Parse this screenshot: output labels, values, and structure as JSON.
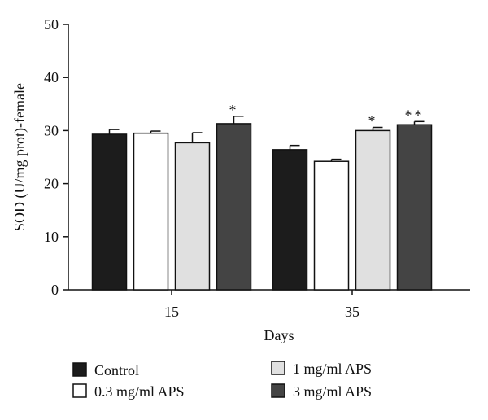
{
  "chart_data": {
    "type": "bar",
    "categories": [
      "15",
      "35"
    ],
    "xlabel": "Days",
    "ylabel": "SOD (U/mg prot)-female",
    "ylim": [
      0,
      50
    ],
    "yticks": [
      0,
      10,
      20,
      30,
      40,
      50
    ],
    "grid": false,
    "legend_position": "bottom",
    "series": [
      {
        "name": "Control",
        "color": "#1c1c1c",
        "values": [
          29.3,
          26.4
        ],
        "errors": [
          0.9,
          0.8
        ],
        "significance": [
          "",
          ""
        ]
      },
      {
        "name": "0.3 mg/ml APS",
        "color": "#ffffff",
        "values": [
          29.5,
          24.2
        ],
        "errors": [
          0.4,
          0.4
        ],
        "significance": [
          "",
          ""
        ]
      },
      {
        "name": "1 mg/ml APS",
        "color": "#e0e0e0",
        "values": [
          27.7,
          30.0
        ],
        "errors": [
          1.9,
          0.6
        ],
        "significance": [
          "",
          "*"
        ]
      },
      {
        "name": "3 mg/ml APS",
        "color": "#444444",
        "values": [
          31.3,
          31.1
        ],
        "errors": [
          1.4,
          0.6
        ],
        "significance": [
          "*",
          "**"
        ]
      }
    ]
  }
}
